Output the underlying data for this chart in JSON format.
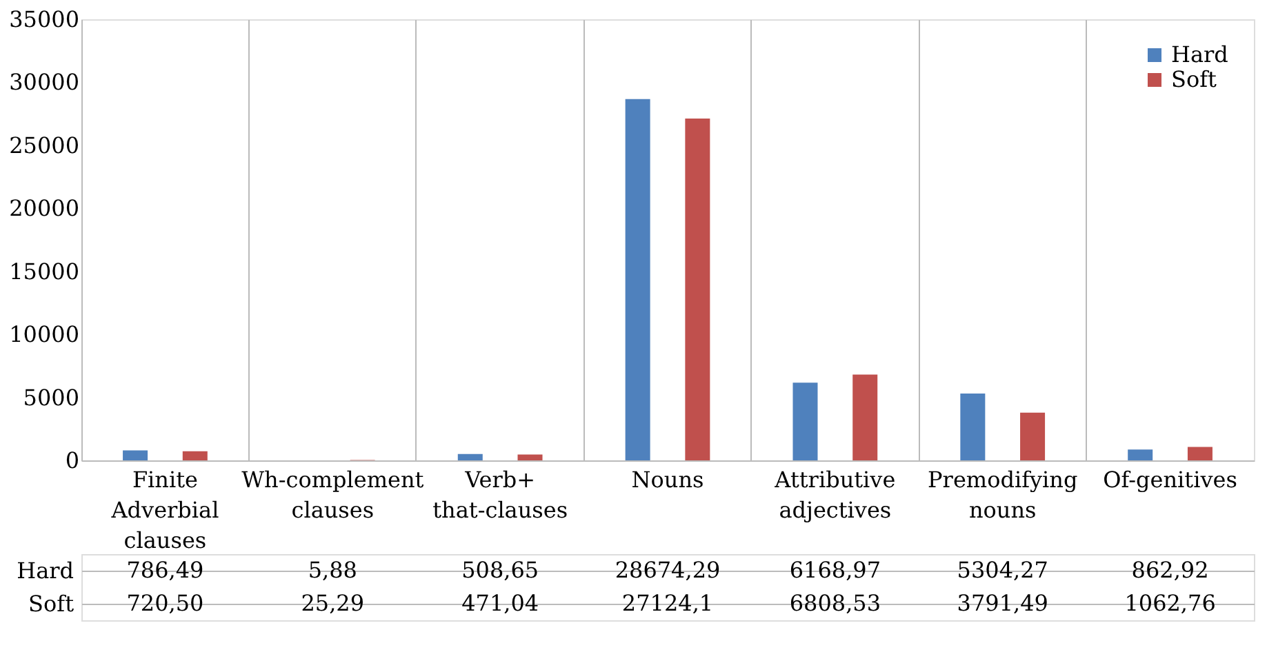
{
  "chart_data": {
    "type": "bar",
    "categories": [
      "Finite Adverbial clauses",
      "Wh-complement clauses",
      "Verb+ that-clauses",
      "Nouns",
      "Attributive adjectives",
      "Premodifying nouns",
      "Of-genitives"
    ],
    "series": [
      {
        "name": "Hard",
        "color": "#4f81bd",
        "values": [
          786.49,
          5.88,
          508.65,
          28674.29,
          6168.97,
          5304.27,
          862.92
        ],
        "value_labels": [
          "786,49",
          "5,88",
          "508,65",
          "28674,29",
          "6168,97",
          "5304,27",
          "862,92"
        ]
      },
      {
        "name": "Soft",
        "color": "#c0504d",
        "values": [
          720.5,
          25.29,
          471.04,
          27124.1,
          6808.53,
          3791.49,
          1062.76
        ],
        "value_labels": [
          "720,50",
          "25,29",
          "471,04",
          "27124,1",
          "6808,53",
          "3791,49",
          "1062,76"
        ]
      }
    ],
    "ylim": [
      0,
      35000
    ],
    "yticks": [
      0,
      5000,
      10000,
      15000,
      20000,
      25000,
      30000,
      35000
    ],
    "grid": "x",
    "legend": "top right"
  }
}
